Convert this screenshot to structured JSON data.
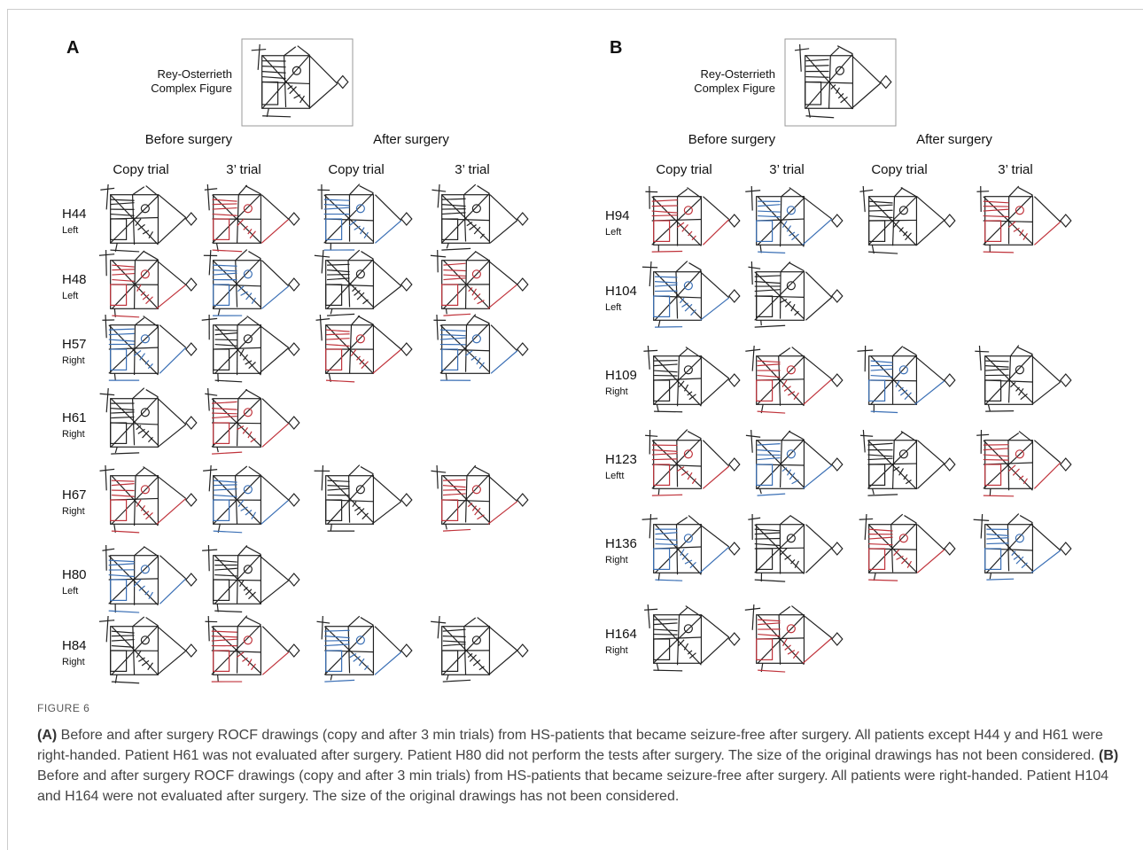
{
  "panels": [
    {
      "label": "A",
      "reference": [
        "Rey-Osterrieth",
        "Complex Figure"
      ],
      "groups": [
        "Before surgery",
        "After surgery"
      ],
      "trials": [
        "Copy trial",
        "3’ trial",
        "Copy trial",
        "3’ trial"
      ],
      "patients": [
        {
          "id": "H44",
          "hand": "Left"
        },
        {
          "id": "H48",
          "hand": "Left"
        },
        {
          "id": "H57",
          "hand": "Right"
        },
        {
          "id": "H61",
          "hand": "Right"
        },
        {
          "id": "H67",
          "hand": "Right"
        },
        {
          "id": "H80",
          "hand": "Left"
        },
        {
          "id": "H84",
          "hand": "Right"
        }
      ]
    },
    {
      "label": "B",
      "reference": [
        "Rey-Osterrieth",
        "Complex Figure"
      ],
      "groups": [
        "Before surgery",
        "After surgery"
      ],
      "trials": [
        "Copy trial",
        "3’ trial",
        "Copy trial",
        "3’ trial"
      ],
      "patients": [
        {
          "id": "H94",
          "hand": "Left"
        },
        {
          "id": "H104",
          "hand": "Left"
        },
        {
          "id": "H109",
          "hand": "Right"
        },
        {
          "id": "H123",
          "hand": "Leftt"
        },
        {
          "id": "H136",
          "hand": "Right"
        },
        {
          "id": "H164",
          "hand": "Right"
        }
      ]
    }
  ],
  "caption": {
    "label": "FIGURE 6",
    "parts": [
      {
        "label": "(A)",
        "text": " Before and after surgery ROCF drawings (copy and after 3 min trials) from HS-patients that became seizure-free after surgery. All patients except H44 y and H61 were right-handed. Patient H61 was not evaluated after surgery. Patient H80 did not perform the tests after surgery. The size of the original drawings has not been considered. "
      },
      {
        "label": "(B)",
        "text": " Before and after surgery ROCF drawings (copy and after 3 min trials) from HS-patients that became seizure-free after surgery. All patients were right-handed. Patient H104 and H164 were not evaluated after surgery. The size of the original drawings has not been considered."
      }
    ]
  }
}
